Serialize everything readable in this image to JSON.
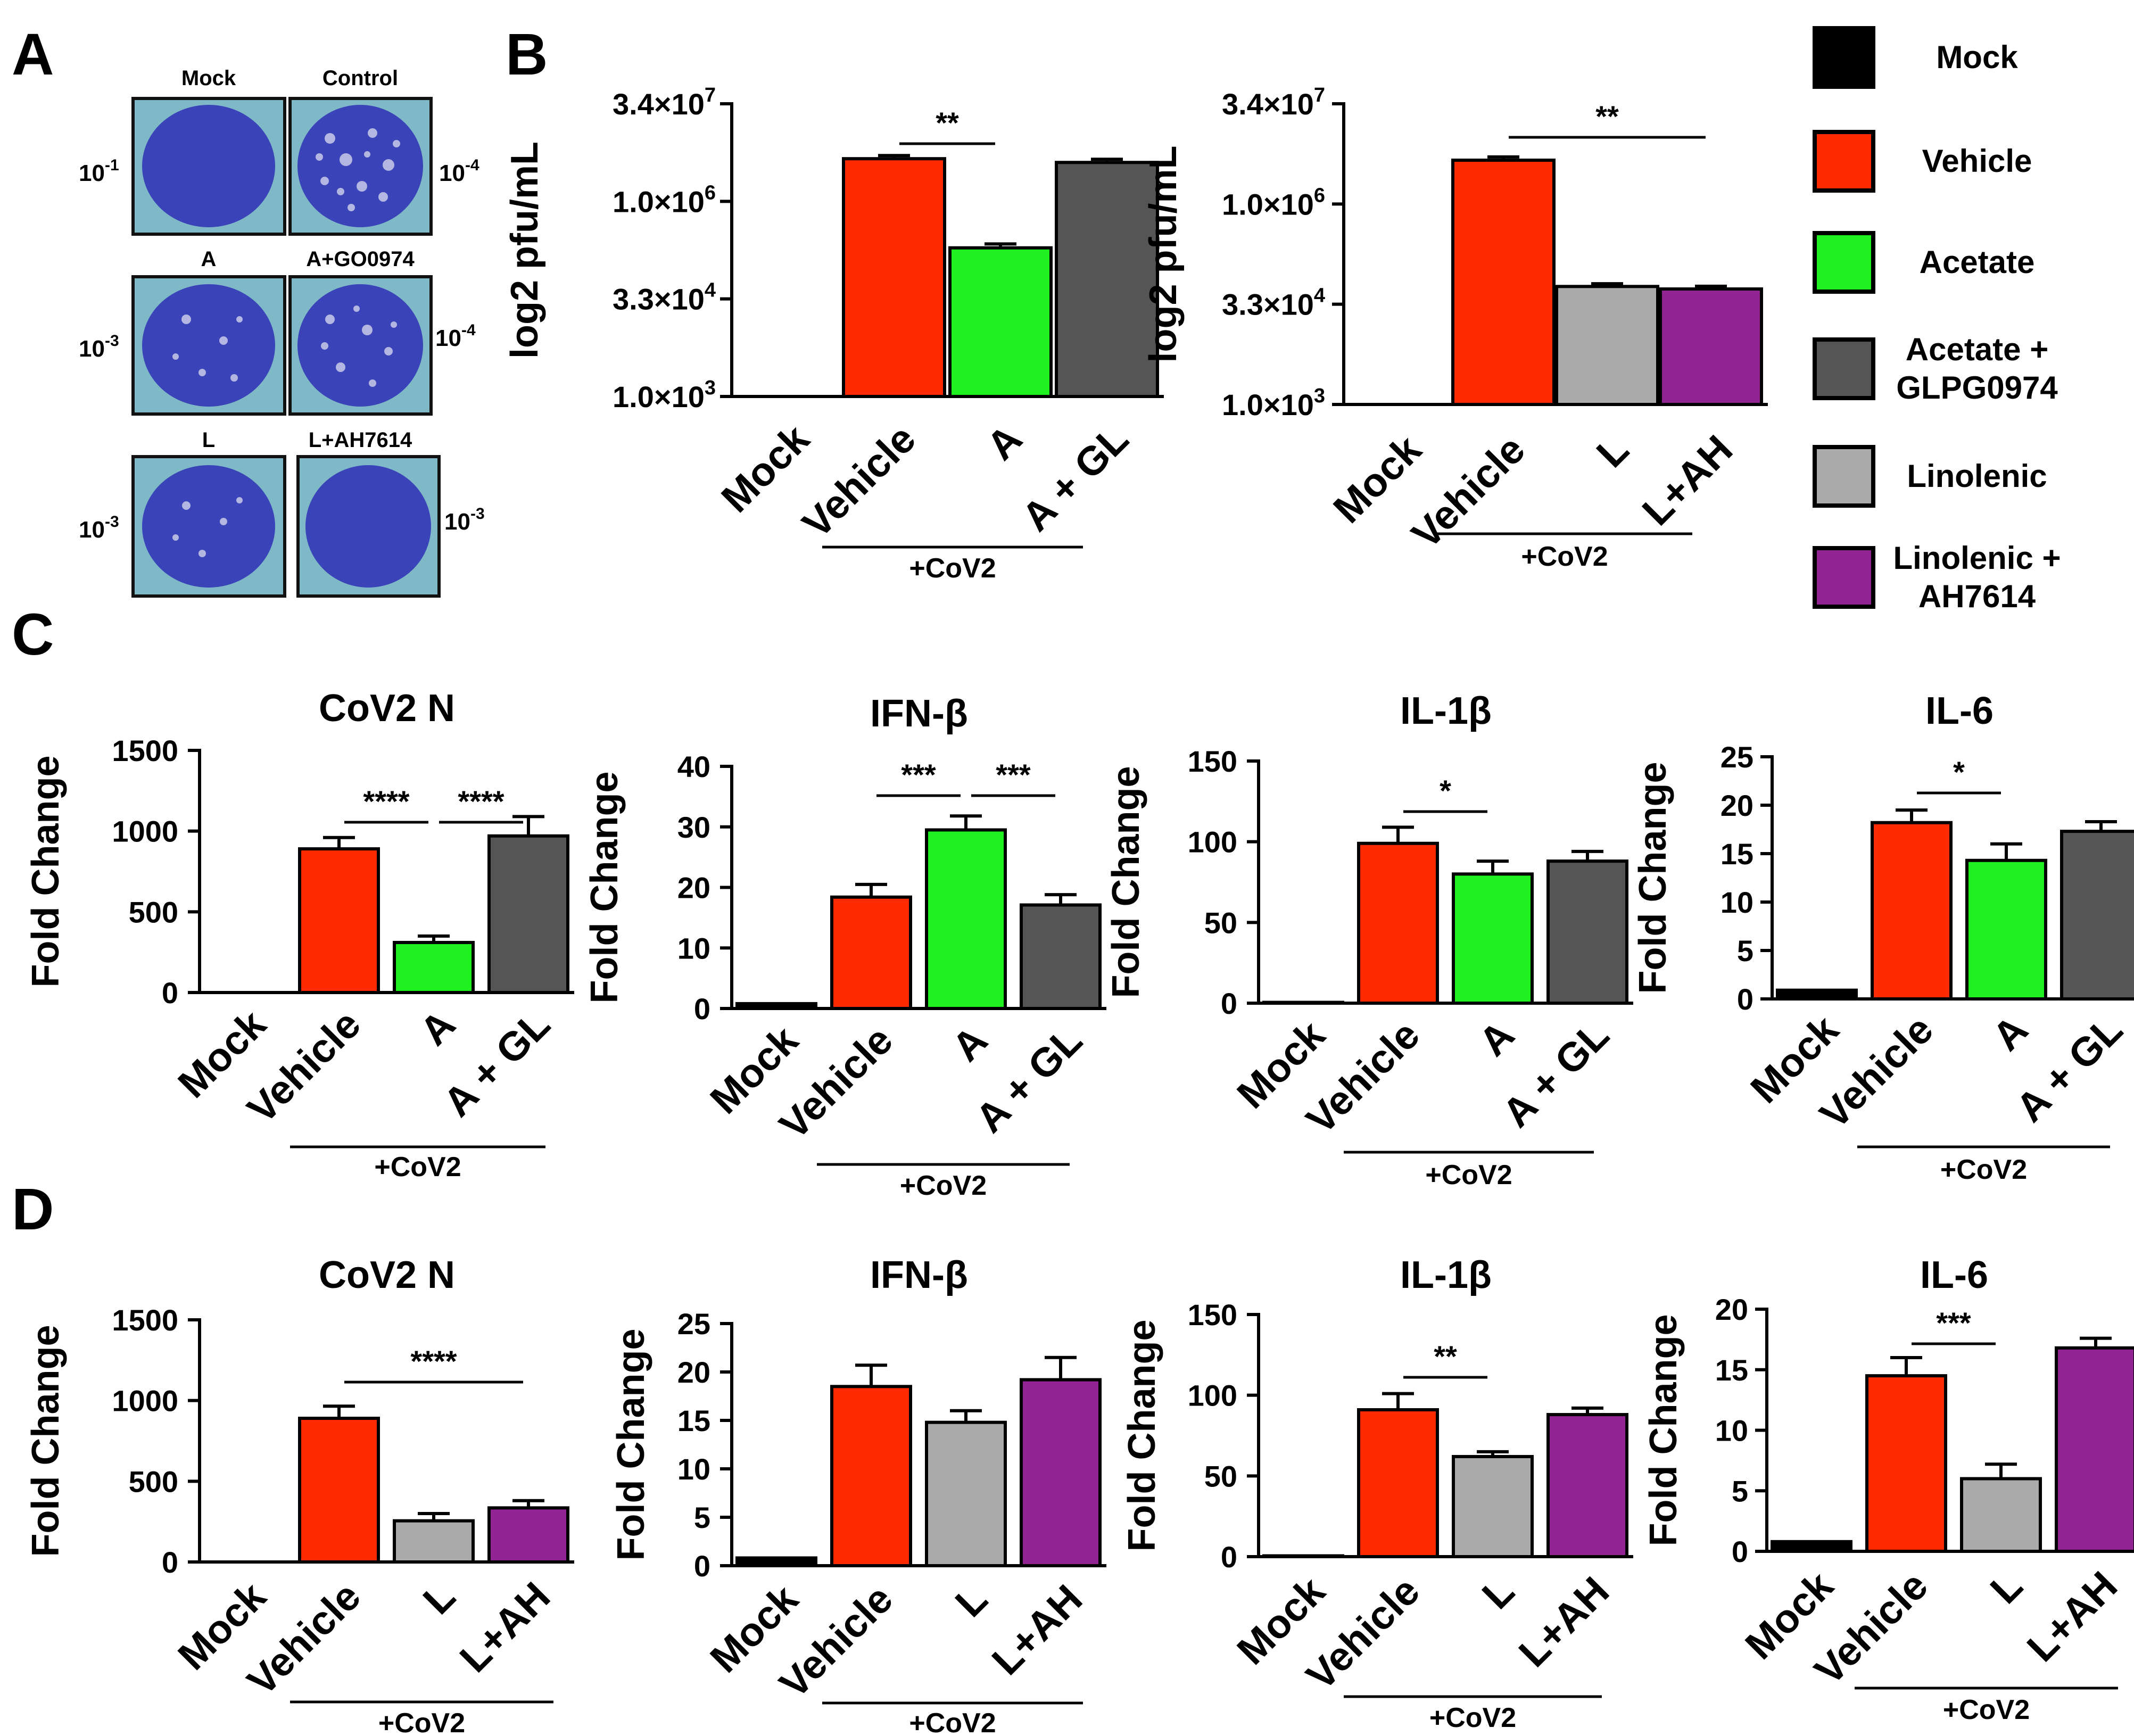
{
  "panel_labels": {
    "a": "A",
    "b": "B",
    "c": "C",
    "d": "D"
  },
  "plaque_panel": {
    "plates": [
      {
        "title": "Mock",
        "dilution_base": "10",
        "dilution_exp": "-1"
      },
      {
        "title": "Control",
        "dilution_base": "10",
        "dilution_exp": "-4"
      },
      {
        "title": "A",
        "dilution_base": "10",
        "dilution_exp": "-3"
      },
      {
        "title": "A+GO0974",
        "dilution_base": "10",
        "dilution_exp": "-4"
      },
      {
        "title": "L",
        "dilution_base": "10",
        "dilution_exp": "-3"
      },
      {
        "title": "L+AH7614",
        "dilution_base": "10",
        "dilution_exp": "-3"
      }
    ]
  },
  "legend": {
    "items": [
      {
        "label": "Mock",
        "color": "#000000"
      },
      {
        "label": "Vehicle",
        "color": "#ff2a00"
      },
      {
        "label": "Acetate",
        "color": "#1ff01f"
      },
      {
        "label": "Acetate +\nGLPG0974",
        "color": "#555555"
      },
      {
        "label": "Linolenic",
        "color": "#aaaaaa"
      },
      {
        "label": "Linolenic +\nAH7614",
        "color": "#922393"
      }
    ]
  },
  "colors": {
    "Mock": "#000000",
    "Vehicle": "#ff2a00",
    "A": "#1ff01f",
    "A + GL": "#555555",
    "L": "#aaaaaa",
    "L+AH": "#922393"
  },
  "chart_data": [
    {
      "id": "b1",
      "panel": "B",
      "type": "bar",
      "title": "",
      "ylabel": "log2 pfu/mL",
      "yscale": "log",
      "yticks": [
        "1.0×10^3",
        "3.3×10^4",
        "1.0×10^6",
        "3.4×10^7"
      ],
      "ylim": [
        1000,
        34000000
      ],
      "categories": [
        "Mock",
        "Vehicle",
        "A",
        "A + GL"
      ],
      "values": [
        0,
        4800000,
        200000,
        4200000
      ],
      "errors": [
        0,
        1.12,
        1.15,
        1.12
      ],
      "group_label": "+CoV2",
      "significance": [
        {
          "from": 1,
          "to": 2,
          "label": "**"
        }
      ]
    },
    {
      "id": "b2",
      "panel": "B",
      "type": "bar",
      "title": "",
      "ylabel": "log2 pfu/mL",
      "yscale": "log",
      "yticks": [
        "1.0×10^3",
        "3.3×10^4",
        "1.0×10^6",
        "3.4×10^7"
      ],
      "ylim": [
        1000,
        34000000
      ],
      "categories": [
        "Mock",
        "Vehicle",
        "L",
        "L+AH"
      ],
      "values": [
        0,
        4800000,
        60000,
        55000
      ],
      "errors": [
        0,
        1.12,
        1.1,
        1.1
      ],
      "group_label": "+CoV2",
      "significance": [
        {
          "from": 1,
          "to": 3,
          "label": "**"
        }
      ]
    },
    {
      "id": "c1",
      "panel": "C",
      "type": "bar",
      "title": "CoV2 N",
      "ylabel": "Fold  Change",
      "yscale": "linear",
      "ylim": [
        0,
        1500
      ],
      "yticks": [
        "0",
        "500",
        "1000",
        "1500"
      ],
      "categories": [
        "Mock",
        "Vehicle",
        "A",
        "A + GL"
      ],
      "values": [
        0,
        890,
        310,
        970
      ],
      "errors": [
        0,
        70,
        40,
        120
      ],
      "group_label": "+CoV2",
      "significance": [
        {
          "from": 1,
          "to": 2,
          "label": "****"
        },
        {
          "from": 2,
          "to": 3,
          "label": "****"
        }
      ]
    },
    {
      "id": "c2",
      "panel": "C",
      "type": "bar",
      "title": "IFN-β",
      "ylabel": "Fold  Change",
      "yscale": "linear",
      "ylim": [
        0,
        40
      ],
      "yticks": [
        "0",
        "10",
        "20",
        "30",
        "40"
      ],
      "categories": [
        "Mock",
        "Vehicle",
        "A",
        "A + GL"
      ],
      "values": [
        0.8,
        18.4,
        29.5,
        17.1
      ],
      "errors": [
        0,
        2.1,
        2.3,
        1.7
      ],
      "group_label": "+CoV2",
      "significance": [
        {
          "from": 1,
          "to": 2,
          "label": "***"
        },
        {
          "from": 2,
          "to": 3,
          "label": "***"
        }
      ]
    },
    {
      "id": "c3",
      "panel": "C",
      "type": "bar",
      "title": "IL-1β",
      "ylabel": "Fold  Change",
      "yscale": "linear",
      "ylim": [
        0,
        150
      ],
      "yticks": [
        "0",
        "50",
        "100",
        "150"
      ],
      "categories": [
        "Mock",
        "Vehicle",
        "A",
        "A + GL"
      ],
      "values": [
        0.5,
        99,
        80,
        88
      ],
      "errors": [
        0,
        10,
        8,
        6
      ],
      "group_label": "+CoV2",
      "significance": [
        {
          "from": 1,
          "to": 2,
          "label": "*"
        }
      ]
    },
    {
      "id": "c4",
      "panel": "C",
      "type": "bar",
      "title": "IL-6",
      "ylabel": "Fold  Change",
      "yscale": "linear",
      "ylim": [
        0,
        25
      ],
      "yticks": [
        "0",
        "5",
        "10",
        "15",
        "20",
        "25"
      ],
      "categories": [
        "Mock",
        "Vehicle",
        "A",
        "A + GL"
      ],
      "values": [
        0.9,
        18.2,
        14.3,
        17.3
      ],
      "errors": [
        0,
        1.3,
        1.7,
        1.0
      ],
      "group_label": "+CoV2",
      "significance": [
        {
          "from": 1,
          "to": 2,
          "label": "*"
        }
      ]
    },
    {
      "id": "d1",
      "panel": "D",
      "type": "bar",
      "title": "CoV2 N",
      "ylabel": "Fold Change",
      "yscale": "linear",
      "ylim": [
        0,
        1500
      ],
      "yticks": [
        "0",
        "500",
        "1000",
        "1500"
      ],
      "categories": [
        "Mock",
        "Vehicle",
        "L",
        "L+AH"
      ],
      "values": [
        0,
        890,
        255,
        335
      ],
      "errors": [
        0,
        75,
        45,
        45
      ],
      "group_label": "+CoV2",
      "significance": [
        {
          "from": 1,
          "to": 3,
          "label": "****"
        }
      ]
    },
    {
      "id": "d2",
      "panel": "D",
      "type": "bar",
      "title": "IFN-β",
      "ylabel": "Fold Change",
      "yscale": "linear",
      "ylim": [
        0,
        25
      ],
      "yticks": [
        "0",
        "5",
        "10",
        "15",
        "20",
        "25"
      ],
      "categories": [
        "Mock",
        "Vehicle",
        "L",
        "L+AH"
      ],
      "values": [
        0.8,
        18.5,
        14.8,
        19.2
      ],
      "errors": [
        0,
        2.2,
        1.2,
        2.3
      ],
      "group_label": "+CoV2",
      "significance": []
    },
    {
      "id": "d3",
      "panel": "D",
      "type": "bar",
      "title": "IL-1β",
      "ylabel": "Fold Change",
      "yscale": "linear",
      "ylim": [
        0,
        150
      ],
      "yticks": [
        "0",
        "50",
        "100",
        "150"
      ],
      "categories": [
        "Mock",
        "Vehicle",
        "L",
        "L+AH"
      ],
      "values": [
        0.5,
        91,
        62,
        88
      ],
      "errors": [
        0,
        10,
        3,
        4
      ],
      "group_label": "+CoV2",
      "significance": [
        {
          "from": 1,
          "to": 2,
          "label": "**"
        }
      ]
    },
    {
      "id": "d4",
      "panel": "D",
      "type": "bar",
      "title": "IL-6",
      "ylabel": "Fold Change",
      "yscale": "linear",
      "ylim": [
        0,
        20
      ],
      "yticks": [
        "0",
        "5",
        "10",
        "15",
        "20"
      ],
      "categories": [
        "Mock",
        "Vehicle",
        "L",
        "L+AH"
      ],
      "values": [
        0.8,
        14.5,
        6.0,
        16.8
      ],
      "errors": [
        0,
        1.5,
        1.2,
        0.8
      ],
      "group_label": "+CoV2",
      "significance": [
        {
          "from": 1,
          "to": 2,
          "label": "***"
        }
      ]
    }
  ]
}
